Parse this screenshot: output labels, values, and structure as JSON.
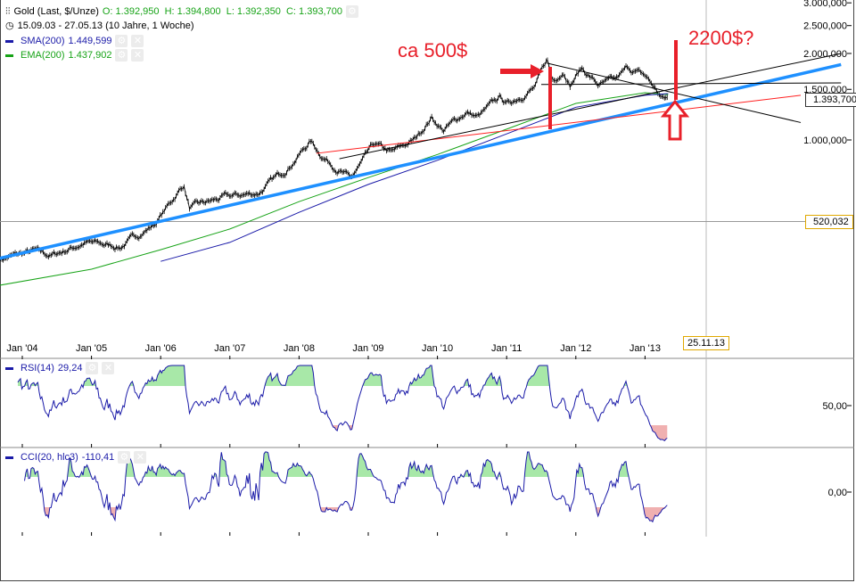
{
  "header": {
    "instrument": "Gold (Last, $/Unze)",
    "ohlc": "O: 1.392,950  H: 1.394,800  L: 1.392,350  C: 1.393,700",
    "period": "15.09.03 - 27.05.13 (10 Jahre, 1 Woche)",
    "sma_label": "SMA(200)",
    "sma_value": "1.449,599",
    "ema_label": "EMA(200)",
    "ema_value": "1.437,902",
    "rsi_label": "RSI(14)",
    "rsi_value": "29,24",
    "cci_label": "CCI(20, hlc3)",
    "cci_value": "-110,41",
    "icons": [
      "chart-settings-icon",
      "clock-icon",
      "settings-icon",
      "close-icon"
    ]
  },
  "annotations": {
    "left_text": "ca 500$",
    "right_text": "2200$?",
    "color": "#e8202a"
  },
  "crosshair": {
    "date_label": "25.11.13",
    "price_label": "520,032",
    "price": 520.032
  },
  "last_price_label": "1.393,700",
  "colors": {
    "price": "#000000",
    "sma": "#1a1aa8",
    "ema": "#17a317",
    "trend_blue": "#1e90ff",
    "trend_red": "#ff2020",
    "overbought_fill": "#a8e8a8",
    "oversold_fill": "#f0b0b0"
  },
  "chart_data": {
    "type": "line",
    "yscale": "log",
    "ylim": [
      340,
      3000
    ],
    "xlim": [
      "2003-09-15",
      "2015-11-30"
    ],
    "y_ticks": [
      {
        "v": 1000,
        "label": "1.000,000"
      },
      {
        "v": 1500,
        "label": "1.500,000"
      },
      {
        "v": 2000,
        "label": "2.000,000"
      },
      {
        "v": 2500,
        "label": "2.500,000"
      },
      {
        "v": 3000,
        "label": "3.000,000"
      }
    ],
    "x_ticks": [
      "Jan '04",
      "Jan '05",
      "Jan '06",
      "Jan '07",
      "Jan '08",
      "Jan '09",
      "Jan '10",
      "Jan '11",
      "Jan '12",
      "Jan '13"
    ],
    "price": [
      [
        "2003-09",
        385
      ],
      [
        "2004-03",
        410
      ],
      [
        "2004-06",
        395
      ],
      [
        "2004-12",
        440
      ],
      [
        "2005-06",
        425
      ],
      [
        "2005-12",
        510
      ],
      [
        "2006-05",
        700
      ],
      [
        "2006-06",
        580
      ],
      [
        "2006-12",
        630
      ],
      [
        "2007-06",
        655
      ],
      [
        "2007-11",
        800
      ],
      [
        "2008-03",
        990
      ],
      [
        "2008-05",
        880
      ],
      [
        "2008-10",
        730
      ],
      [
        "2009-02",
        960
      ],
      [
        "2009-05",
        900
      ],
      [
        "2009-09",
        1000
      ],
      [
        "2009-12",
        1200
      ],
      [
        "2010-02",
        1080
      ],
      [
        "2010-06",
        1250
      ],
      [
        "2010-08",
        1200
      ],
      [
        "2010-12",
        1410
      ],
      [
        "2011-01",
        1330
      ],
      [
        "2011-06",
        1530
      ],
      [
        "2011-08",
        1900
      ],
      [
        "2011-09",
        1620
      ],
      [
        "2011-11",
        1750
      ],
      [
        "2011-12",
        1560
      ],
      [
        "2012-02",
        1780
      ],
      [
        "2012-05",
        1550
      ],
      [
        "2012-08",
        1610
      ],
      [
        "2012-10",
        1780
      ],
      [
        "2013-01",
        1670
      ],
      [
        "2013-02",
        1580
      ],
      [
        "2013-04",
        1390
      ],
      [
        "2013-05",
        1394
      ]
    ],
    "sma200": [
      [
        "2006-01",
        378
      ],
      [
        "2007-01",
        440
      ],
      [
        "2008-01",
        560
      ],
      [
        "2009-01",
        700
      ],
      [
        "2010-01",
        850
      ],
      [
        "2011-01",
        1050
      ],
      [
        "2012-01",
        1300
      ],
      [
        "2013-01",
        1430
      ],
      [
        "2013-05",
        1450
      ]
    ],
    "ema200": [
      [
        "2003-09",
        312
      ],
      [
        "2005-01",
        355
      ],
      [
        "2006-01",
        415
      ],
      [
        "2007-01",
        490
      ],
      [
        "2008-01",
        610
      ],
      [
        "2009-01",
        740
      ],
      [
        "2010-01",
        890
      ],
      [
        "2011-01",
        1090
      ],
      [
        "2012-01",
        1340
      ],
      [
        "2013-01",
        1460
      ],
      [
        "2013-05",
        1438
      ]
    ],
    "trendlines": [
      {
        "color": "blue",
        "from": [
          "2003-09",
          387
        ],
        "to": [
          "2015-11",
          1830
        ]
      },
      {
        "color": "red",
        "from": [
          "2008-04",
          898
        ],
        "to": [
          "2015-04",
          1430
        ]
      },
      {
        "color": "black",
        "from": [
          "2008-08",
          860
        ],
        "to": [
          "2015-11",
          2000
        ]
      },
      {
        "color": "black",
        "from": [
          "2011-07",
          1560
        ],
        "to": [
          "2015-11",
          1580
        ]
      },
      {
        "color": "black",
        "from": [
          "2011-08",
          1850
        ],
        "to": [
          "2015-04",
          1150
        ]
      }
    ],
    "rsi": {
      "label": "RSI(14)",
      "tick": {
        "v": 50,
        "label": "50,00"
      },
      "upper": 70,
      "lower": 30
    },
    "cci": {
      "label": "CCI(20, hlc3)",
      "tick": {
        "v": 0,
        "label": "0,00"
      },
      "upper": 100,
      "lower": -100
    }
  }
}
